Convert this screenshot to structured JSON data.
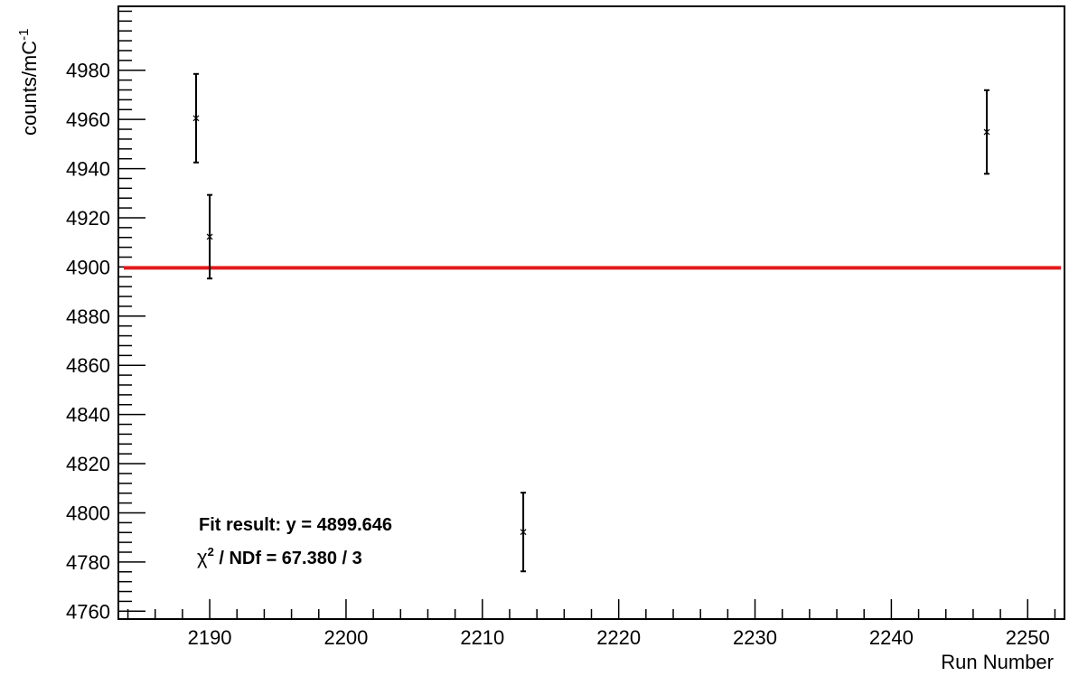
{
  "chart_data": {
    "type": "scatter",
    "xlabel": "Run Number",
    "ylabel": "counts/mC",
    "ylabel_sup": "-1",
    "xlim": [
      2183.3,
      2252.7
    ],
    "ylim": [
      4756.8,
      5006
    ],
    "x_ticks": [
      2190,
      2200,
      2210,
      2220,
      2230,
      2240,
      2250
    ],
    "x_tick_labels": [
      "2190",
      "2200",
      "2210",
      "2220",
      "2230",
      "2240",
      "2250"
    ],
    "x_minor_step": 2,
    "y_ticks": [
      4760,
      4780,
      4800,
      4820,
      4840,
      4860,
      4880,
      4900,
      4920,
      4940,
      4960,
      4980
    ],
    "y_tick_labels": [
      "4760",
      "4780",
      "4800",
      "4820",
      "4840",
      "4860",
      "4880",
      "4900",
      "4920",
      "4940",
      "4960",
      "4980"
    ],
    "y_minor_step": 4,
    "grid": false,
    "points": [
      {
        "x": 2189,
        "y": 4960.5,
        "err": 18
      },
      {
        "x": 2190,
        "y": 4912.3,
        "err": 17
      },
      {
        "x": 2213,
        "y": 4792.2,
        "err": 16
      },
      {
        "x": 2247,
        "y": 4954.9,
        "err": 17
      }
    ],
    "fit": {
      "y": 4899.646,
      "color": "#e31a1c"
    },
    "annotations": {
      "fit_result": "Fit result: y = 4899.646",
      "chi2_symbol": "χ",
      "chi2_sup": "2",
      "chi2_rest": " / NDf = 67.380 / 3"
    }
  }
}
